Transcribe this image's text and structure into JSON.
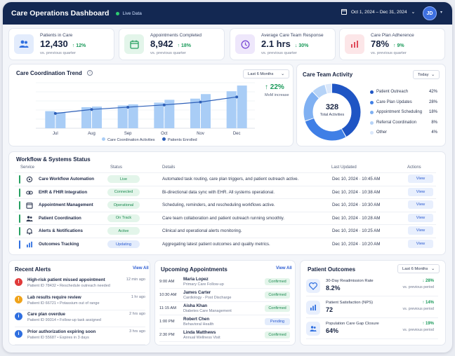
{
  "header": {
    "title": "Care Operations Dashboard",
    "live": "Live Data",
    "date_range": "Oct 1, 2024 – Dec 31, 2024",
    "avatar": "JD"
  },
  "kpis": [
    {
      "label": "Patients in Care",
      "value": "12,430",
      "change": "12%",
      "sub": "vs. previous quarter",
      "icon": "users-icon",
      "color": "#2f6fe0"
    },
    {
      "label": "Appointments Completed",
      "value": "8,942",
      "change": "18%",
      "sub": "vs. previous quarter",
      "icon": "calendar-icon",
      "color": "#27a061"
    },
    {
      "label": "Average Care Team Response",
      "value": "2.1 hrs",
      "change": "30%",
      "sub": "vs. previous quarter",
      "icon": "clock-icon",
      "color": "#7c4dd6"
    },
    {
      "label": "Care Plan Adherence",
      "value": "78%",
      "change": "9%",
      "sub": "vs. previous quarter",
      "icon": "bar-chart-icon",
      "color": "#e04a5a"
    }
  ],
  "trend": {
    "title": "Care Coordination Trend",
    "period": "Last 6 Months",
    "change": "22%",
    "change_label": "MoM increase"
  },
  "chart_data": {
    "type": "bar",
    "categories": [
      "Jul",
      "Aug",
      "Sep",
      "Oct",
      "Nov",
      "Dec"
    ],
    "series": [
      {
        "name": "Care Coordination Activities",
        "type": "bar",
        "values": [
          [
            30,
            28
          ],
          [
            37,
            38
          ],
          [
            40,
            42
          ],
          [
            45,
            50
          ],
          [
            52,
            60
          ],
          [
            65,
            75
          ]
        ],
        "color": "#a9cdf6"
      },
      {
        "name": "Patients Enrolled",
        "type": "line",
        "values": [
          26,
          33,
          37,
          41,
          46,
          55
        ],
        "color": "#2d5fb8"
      }
    ],
    "ylim": [
      0,
      80
    ],
    "yticks": [],
    "grid": true,
    "legend": "bottom"
  },
  "activity": {
    "title": "Care Team Activity",
    "period": "Today",
    "total": "328",
    "total_label": "Total Activities",
    "segments": [
      {
        "name": "Patient Outreach",
        "pct": "42%",
        "value": 42,
        "color": "#1f55c4"
      },
      {
        "name": "Care Plan Updates",
        "pct": "28%",
        "value": 28,
        "color": "#3f7fe6"
      },
      {
        "name": "Appointment Scheduling",
        "pct": "18%",
        "value": 18,
        "color": "#7fb0f2"
      },
      {
        "name": "Referral Coordination",
        "pct": "8%",
        "value": 8,
        "color": "#b6d3f7"
      },
      {
        "name": "Other",
        "pct": "4%",
        "value": 4,
        "color": "#dbe8fb"
      }
    ]
  },
  "workflow": {
    "title": "Workflow & Systems Status",
    "columns": {
      "service": "Service",
      "status": "Status",
      "details": "Details",
      "updated": "Last Updated",
      "actions": "Actions"
    },
    "rows": [
      {
        "service": "Care Workflow Automation",
        "status": "Live",
        "details": "Automated task routing, care plan triggers, and patient outreach active.",
        "updated": "Dec 10, 2024 · 10:45 AM",
        "action": "View",
        "icon": "workflow-icon",
        "bar": "#27a061",
        "pill_bg": "#e3f5ea",
        "pill_fg": "#1b8a4f"
      },
      {
        "service": "EHR & FHIR Integration",
        "status": "Connected",
        "details": "Bi-directional data sync with EHR. All systems operational.",
        "updated": "Dec 10, 2024 · 10:38 AM",
        "action": "View",
        "icon": "link-icon",
        "bar": "#27a061",
        "pill_bg": "#e3f5ea",
        "pill_fg": "#1b8a4f"
      },
      {
        "service": "Appointment Management",
        "status": "Operational",
        "details": "Scheduling, reminders, and rescheduling workflows active.",
        "updated": "Dec 10, 2024 · 10:30 AM",
        "action": "View",
        "icon": "calendar-icon",
        "bar": "#27a061",
        "pill_bg": "#e3f5ea",
        "pill_fg": "#1b8a4f"
      },
      {
        "service": "Patient Coordination",
        "status": "On Track",
        "details": "Care team collaboration and patient outreach running smoothly.",
        "updated": "Dec 10, 2024 · 10:28 AM",
        "action": "View",
        "icon": "users-icon",
        "bar": "#27a061",
        "pill_bg": "#e3f5ea",
        "pill_fg": "#1b8a4f"
      },
      {
        "service": "Alerts & Notifications",
        "status": "Active",
        "details": "Clinical and operational alerts monitoring.",
        "updated": "Dec 10, 2024 · 10:25 AM",
        "action": "View",
        "icon": "bell-icon",
        "bar": "#27a061",
        "pill_bg": "#e3f5ea",
        "pill_fg": "#1b8a4f"
      },
      {
        "service": "Outcomes Tracking",
        "status": "Updating",
        "details": "Aggregating latest patient outcomes and quality metrics.",
        "updated": "Dec 10, 2024 · 10:20 AM",
        "action": "View",
        "icon": "bar-chart-icon",
        "bar": "#2f6fe0",
        "pill_bg": "#e3ecfc",
        "pill_fg": "#2b5bd1"
      }
    ]
  },
  "alerts": {
    "title": "Recent Alerts",
    "view_all": "View All",
    "items": [
      {
        "title": "High-risk patient missed appointment",
        "sub": "Patient ID 78432  •  Reschedule outreach needed",
        "time": "12 min ago",
        "color": "#e03a3a",
        "glyph": "!"
      },
      {
        "title": "Lab results require review",
        "sub": "Patient ID 66721  •  Potassium out of range",
        "time": "1 hr ago",
        "color": "#f0a31a",
        "glyph": "!"
      },
      {
        "title": "Care plan overdue",
        "sub": "Patient ID 99314  •  Follow-up task assigned",
        "time": "2 hrs ago",
        "color": "#2f6fe0",
        "glyph": "i"
      },
      {
        "title": "Prior authorization expiring soon",
        "sub": "Patient ID 55687  •  Expires in 3 days",
        "time": "3 hrs ago",
        "color": "#2f6fe0",
        "glyph": "i"
      }
    ]
  },
  "appointments": {
    "title": "Upcoming Appointments",
    "view_all": "View All",
    "items": [
      {
        "time": "9:00 AM",
        "name": "Maria Lopez",
        "type": "Primary Care Follow-up",
        "status": "Confirmed",
        "bg": "#e3f5ea",
        "fg": "#1b8a4f"
      },
      {
        "time": "10:30 AM",
        "name": "James Carter",
        "type": "Cardiology - Post Discharge",
        "status": "Confirmed",
        "bg": "#e3f5ea",
        "fg": "#1b8a4f"
      },
      {
        "time": "11:15 AM",
        "name": "Aisha Khan",
        "type": "Diabetes Care Management",
        "status": "Confirmed",
        "bg": "#e3f5ea",
        "fg": "#1b8a4f"
      },
      {
        "time": "1:00 PM",
        "name": "Robert Chen",
        "type": "Behavioral Health",
        "status": "Pending",
        "bg": "#e3ecfc",
        "fg": "#2b5bd1"
      },
      {
        "time": "2:30 PM",
        "name": "Linda Matthews",
        "type": "Annual Wellness Visit",
        "status": "Confirmed",
        "bg": "#e3f5ea",
        "fg": "#1b8a4f"
      }
    ]
  },
  "outcomes": {
    "title": "Patient Outcomes",
    "period": "Last 6 Months",
    "items": [
      {
        "label": "30-Day Readmission Rate",
        "value": "8.2%",
        "change": "28%",
        "sub": "vs. previous period",
        "icon": "heart-icon"
      },
      {
        "label": "Patient Satisfaction (NPS)",
        "value": "72",
        "change": "14%",
        "sub": "vs. previous period",
        "icon": "bar-chart-icon"
      },
      {
        "label": "Population Care Gap Closure",
        "value": "64%",
        "change": "19%",
        "sub": "vs. previous period",
        "icon": "users-icon"
      }
    ]
  }
}
